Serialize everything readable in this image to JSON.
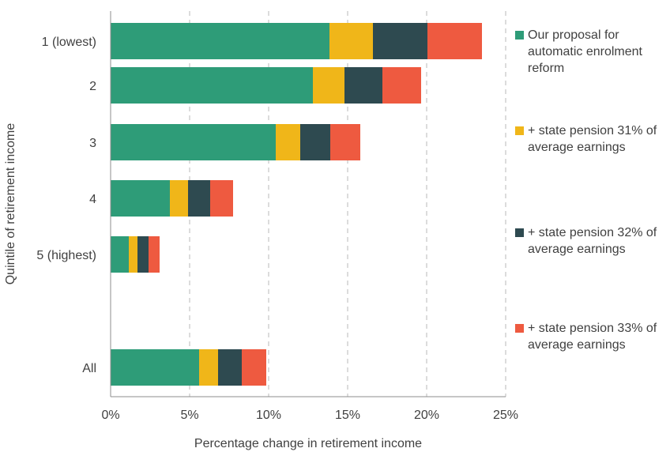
{
  "chart_data": {
    "type": "bar",
    "orientation": "horizontal",
    "stacked": true,
    "title": "",
    "xlabel": "Percentage change in retirement income",
    "ylabel": "Quintile of retirement income",
    "categories": [
      "1 (lowest)",
      "2",
      "3",
      "4",
      "5 (highest)",
      "All"
    ],
    "xlim": [
      0,
      25
    ],
    "xticks": [
      "0%",
      "5%",
      "10%",
      "15%",
      "20%",
      "25%"
    ],
    "grid": "vertical dashed",
    "legend_position": "right",
    "series": [
      {
        "name": "Our proposal for automatic enrolment reform",
        "color": "#2e9c78",
        "values": [
          13.85,
          12.8,
          10.45,
          3.75,
          1.15,
          5.6
        ]
      },
      {
        "name": "+ state pension 31% of average earnings",
        "color": "#f0b619",
        "values": [
          2.75,
          2.0,
          1.55,
          1.15,
          0.55,
          1.2
        ]
      },
      {
        "name": "+ state pension 32% of average earnings",
        "color": "#2e4a50",
        "values": [
          3.45,
          2.4,
          1.9,
          1.4,
          0.7,
          1.5
        ]
      },
      {
        "name": "+ state pension 33% of average earnings",
        "color": "#ee5a40",
        "values": [
          3.45,
          2.45,
          1.9,
          1.45,
          0.7,
          1.55
        ]
      }
    ]
  }
}
